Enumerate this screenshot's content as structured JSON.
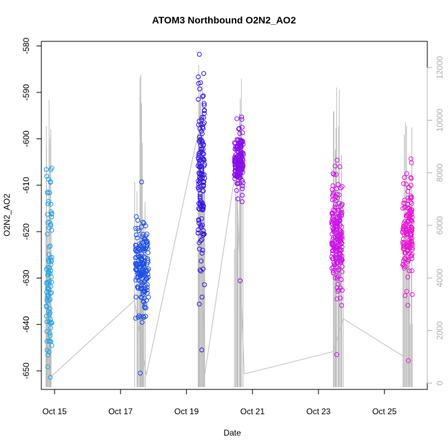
{
  "chart_data": {
    "type": "scatter",
    "title": "ATOM3 Northbound O2N2_AO2",
    "xlabel": "Date",
    "ylabel": "O2N2_AO2",
    "xlim": [
      14.6,
      26.3
    ],
    "ylim": [
      -654,
      -579
    ],
    "y2lim": [
      -240,
      13000
    ],
    "x_ticks": [
      15,
      17,
      19,
      21,
      23,
      25
    ],
    "x_tick_labels": [
      "Oct 15",
      "Oct 17",
      "Oct 19",
      "Oct 21",
      "Oct 23",
      "Oct 25"
    ],
    "y_ticks": [
      -650,
      -640,
      -630,
      -620,
      -610,
      -600,
      -590,
      -580
    ],
    "y2_ticks": [
      0,
      2000,
      4000,
      6000,
      8000,
      10000,
      12000
    ],
    "grid": false,
    "legend": "none",
    "secondary_series_color": "#bdbdbd",
    "clusters": [
      {
        "color": "#1ca3e6",
        "x_range": [
          14.75,
          14.92
        ],
        "y_range": [
          -651.4,
          -606.3
        ],
        "count": 90,
        "y_center": -630,
        "y_spread": 11
      },
      {
        "color": "#1b4ee8",
        "x_range": [
          17.45,
          17.85
        ],
        "y_range": [
          -650.5,
          -609.3
        ],
        "count": 170,
        "y_center": -628,
        "y_spread": 5
      },
      {
        "color": "#3413e6",
        "x_range": [
          19.35,
          19.55
        ],
        "y_range": [
          -645.5,
          -581.8
        ],
        "count": 140,
        "y_center": -610,
        "y_spread": 10
      },
      {
        "color": "#8a0ee8",
        "x_range": [
          20.45,
          20.72
        ],
        "y_range": [
          -630.6,
          -595.3
        ],
        "count": 160,
        "y_center": -605,
        "y_spread": 3
      },
      {
        "color": "#cf12e8",
        "x_range": [
          23.4,
          23.72
        ],
        "y_range": [
          -646.5,
          -604.6
        ],
        "count": 200,
        "y_center": -622,
        "y_spread": 6
      },
      {
        "color": "#e815d3",
        "x_range": [
          25.55,
          25.85
        ],
        "y_range": [
          -647.8,
          -604.3
        ],
        "count": 150,
        "y_center": -619,
        "y_spread": 5
      }
    ],
    "secondary_path": [
      [
        14.9,
        250
      ],
      [
        17.42,
        3150
      ],
      [
        17.78,
        300
      ],
      [
        19.35,
        9500
      ],
      [
        19.55,
        300
      ],
      [
        20.5,
        8200
      ],
      [
        20.75,
        350
      ],
      [
        23.45,
        1200
      ],
      [
        23.75,
        2450
      ],
      [
        25.6,
        1000
      ]
    ],
    "secondary_bursts": [
      {
        "x_range": [
          14.72,
          14.9
        ],
        "max": 10800,
        "count": 20
      },
      {
        "x_range": [
          17.42,
          17.82
        ],
        "max": 12200,
        "count": 22
      },
      {
        "x_range": [
          19.35,
          19.55
        ],
        "max": 12800,
        "count": 14
      },
      {
        "x_range": [
          20.45,
          20.72
        ],
        "max": 11600,
        "count": 18
      },
      {
        "x_range": [
          23.42,
          23.78
        ],
        "max": 11400,
        "count": 20
      },
      {
        "x_range": [
          25.55,
          25.85
        ],
        "max": 10300,
        "count": 18
      }
    ]
  }
}
